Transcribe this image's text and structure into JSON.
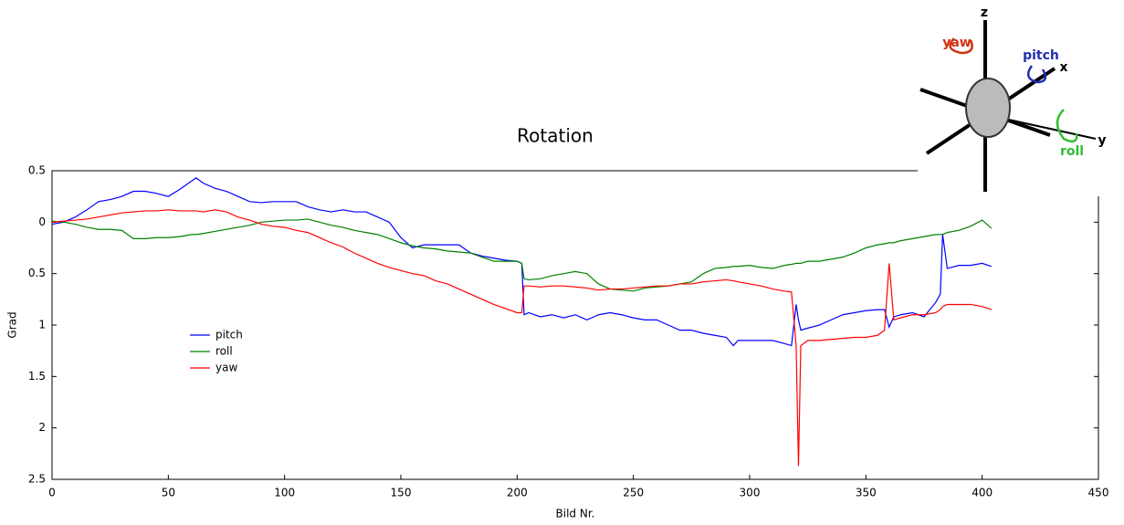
{
  "chart_data": {
    "type": "line",
    "title": "Rotation",
    "xlabel": "Bild Nr.",
    "ylabel": "Grad",
    "x": [
      0,
      5,
      10,
      15,
      20,
      25,
      30,
      35,
      40,
      45,
      50,
      55,
      60,
      62,
      65,
      70,
      75,
      80,
      85,
      90,
      95,
      100,
      105,
      110,
      115,
      120,
      125,
      130,
      135,
      140,
      145,
      150,
      155,
      160,
      165,
      170,
      175,
      180,
      185,
      190,
      195,
      200,
      202,
      203,
      205,
      210,
      215,
      220,
      225,
      230,
      235,
      240,
      245,
      250,
      255,
      260,
      265,
      270,
      275,
      280,
      285,
      290,
      293,
      295,
      300,
      305,
      310,
      315,
      318,
      320,
      321,
      322,
      325,
      330,
      335,
      340,
      345,
      350,
      355,
      358,
      360,
      362,
      365,
      370,
      375,
      380,
      382,
      383,
      385,
      390,
      395,
      400,
      404
    ],
    "series": [
      {
        "name": "pitch",
        "color": "#0000ff",
        "values": [
          -0.02,
          0.0,
          0.05,
          0.12,
          0.2,
          0.22,
          0.25,
          0.3,
          0.3,
          0.28,
          0.25,
          0.32,
          0.4,
          0.43,
          0.38,
          0.33,
          0.3,
          0.25,
          0.2,
          0.19,
          0.2,
          0.2,
          0.2,
          0.15,
          0.12,
          0.1,
          0.12,
          0.1,
          0.1,
          0.05,
          0.0,
          -0.15,
          -0.25,
          -0.22,
          -0.22,
          -0.22,
          -0.22,
          -0.3,
          -0.33,
          -0.35,
          -0.37,
          -0.38,
          -0.4,
          -0.9,
          -0.88,
          -0.92,
          -0.9,
          -0.93,
          -0.9,
          -0.95,
          -0.9,
          -0.88,
          -0.9,
          -0.93,
          -0.95,
          -0.95,
          -1.0,
          -1.05,
          -1.05,
          -1.08,
          -1.1,
          -1.12,
          -1.2,
          -1.15,
          -1.15,
          -1.15,
          -1.15,
          -1.18,
          -1.2,
          -0.8,
          -0.95,
          -1.05,
          -1.03,
          -1.0,
          -0.95,
          -0.9,
          -0.88,
          -0.86,
          -0.85,
          -0.85,
          -1.02,
          -0.92,
          -0.9,
          -0.88,
          -0.92,
          -0.78,
          -0.7,
          -0.12,
          -0.45,
          -0.42,
          -0.42,
          -0.4,
          -0.43
        ]
      },
      {
        "name": "roll",
        "color": "#008000",
        "values": [
          0.01,
          0.0,
          -0.02,
          -0.05,
          -0.07,
          -0.07,
          -0.08,
          -0.16,
          -0.16,
          -0.15,
          -0.15,
          -0.14,
          -0.12,
          -0.12,
          -0.11,
          -0.09,
          -0.07,
          -0.05,
          -0.03,
          0.0,
          0.01,
          0.02,
          0.02,
          0.03,
          0.0,
          -0.03,
          -0.05,
          -0.08,
          -0.1,
          -0.12,
          -0.16,
          -0.2,
          -0.23,
          -0.25,
          -0.26,
          -0.28,
          -0.29,
          -0.3,
          -0.34,
          -0.38,
          -0.38,
          -0.38,
          -0.4,
          -0.55,
          -0.56,
          -0.55,
          -0.52,
          -0.5,
          -0.48,
          -0.5,
          -0.6,
          -0.65,
          -0.66,
          -0.67,
          -0.64,
          -0.63,
          -0.62,
          -0.6,
          -0.58,
          -0.5,
          -0.45,
          -0.44,
          -0.43,
          -0.43,
          -0.42,
          -0.44,
          -0.45,
          -0.42,
          -0.41,
          -0.4,
          -0.4,
          -0.4,
          -0.38,
          -0.38,
          -0.36,
          -0.34,
          -0.3,
          -0.25,
          -0.22,
          -0.21,
          -0.2,
          -0.2,
          -0.18,
          -0.16,
          -0.14,
          -0.12,
          -0.12,
          -0.12,
          -0.1,
          -0.08,
          -0.04,
          0.02,
          -0.06
        ]
      },
      {
        "name": "yaw",
        "color": "#ff0000",
        "values": [
          0.0,
          0.01,
          0.02,
          0.03,
          0.05,
          0.07,
          0.09,
          0.1,
          0.11,
          0.11,
          0.12,
          0.11,
          0.11,
          0.11,
          0.1,
          0.12,
          0.1,
          0.05,
          0.02,
          -0.02,
          -0.04,
          -0.05,
          -0.08,
          -0.1,
          -0.15,
          -0.2,
          -0.24,
          -0.3,
          -0.35,
          -0.4,
          -0.44,
          -0.47,
          -0.5,
          -0.52,
          -0.57,
          -0.6,
          -0.65,
          -0.7,
          -0.75,
          -0.8,
          -0.84,
          -0.88,
          -0.88,
          -0.62,
          -0.62,
          -0.63,
          -0.62,
          -0.62,
          -0.63,
          -0.64,
          -0.66,
          -0.65,
          -0.65,
          -0.64,
          -0.63,
          -0.62,
          -0.62,
          -0.6,
          -0.6,
          -0.58,
          -0.57,
          -0.56,
          -0.57,
          -0.58,
          -0.6,
          -0.62,
          -0.65,
          -0.67,
          -0.68,
          -1.2,
          -2.37,
          -1.2,
          -1.15,
          -1.15,
          -1.14,
          -1.13,
          -1.12,
          -1.12,
          -1.1,
          -1.05,
          -0.4,
          -0.95,
          -0.93,
          -0.9,
          -0.9,
          -0.88,
          -0.85,
          -0.82,
          -0.8,
          -0.8,
          -0.8,
          -0.82,
          -0.85
        ]
      }
    ],
    "xlim": [
      0,
      450
    ],
    "xticks": [
      0,
      50,
      100,
      150,
      200,
      250,
      300,
      350,
      400,
      450
    ],
    "ylim": [
      -2.5,
      0.5
    ],
    "yticks": [
      0.5,
      0,
      {
        "value": -0.5,
        "label": "0.5"
      },
      {
        "value": -1,
        "label": "1"
      },
      {
        "value": -1.5,
        "label": "1.5"
      },
      {
        "value": -2,
        "label": "2"
      },
      {
        "value": -2.5,
        "label": "2.5"
      }
    ],
    "grid": false,
    "legend": "center-left",
    "inset": {
      "axes": [
        "z",
        "x",
        "y"
      ],
      "rotations": [
        "yaw",
        "pitch",
        "roll"
      ]
    }
  }
}
